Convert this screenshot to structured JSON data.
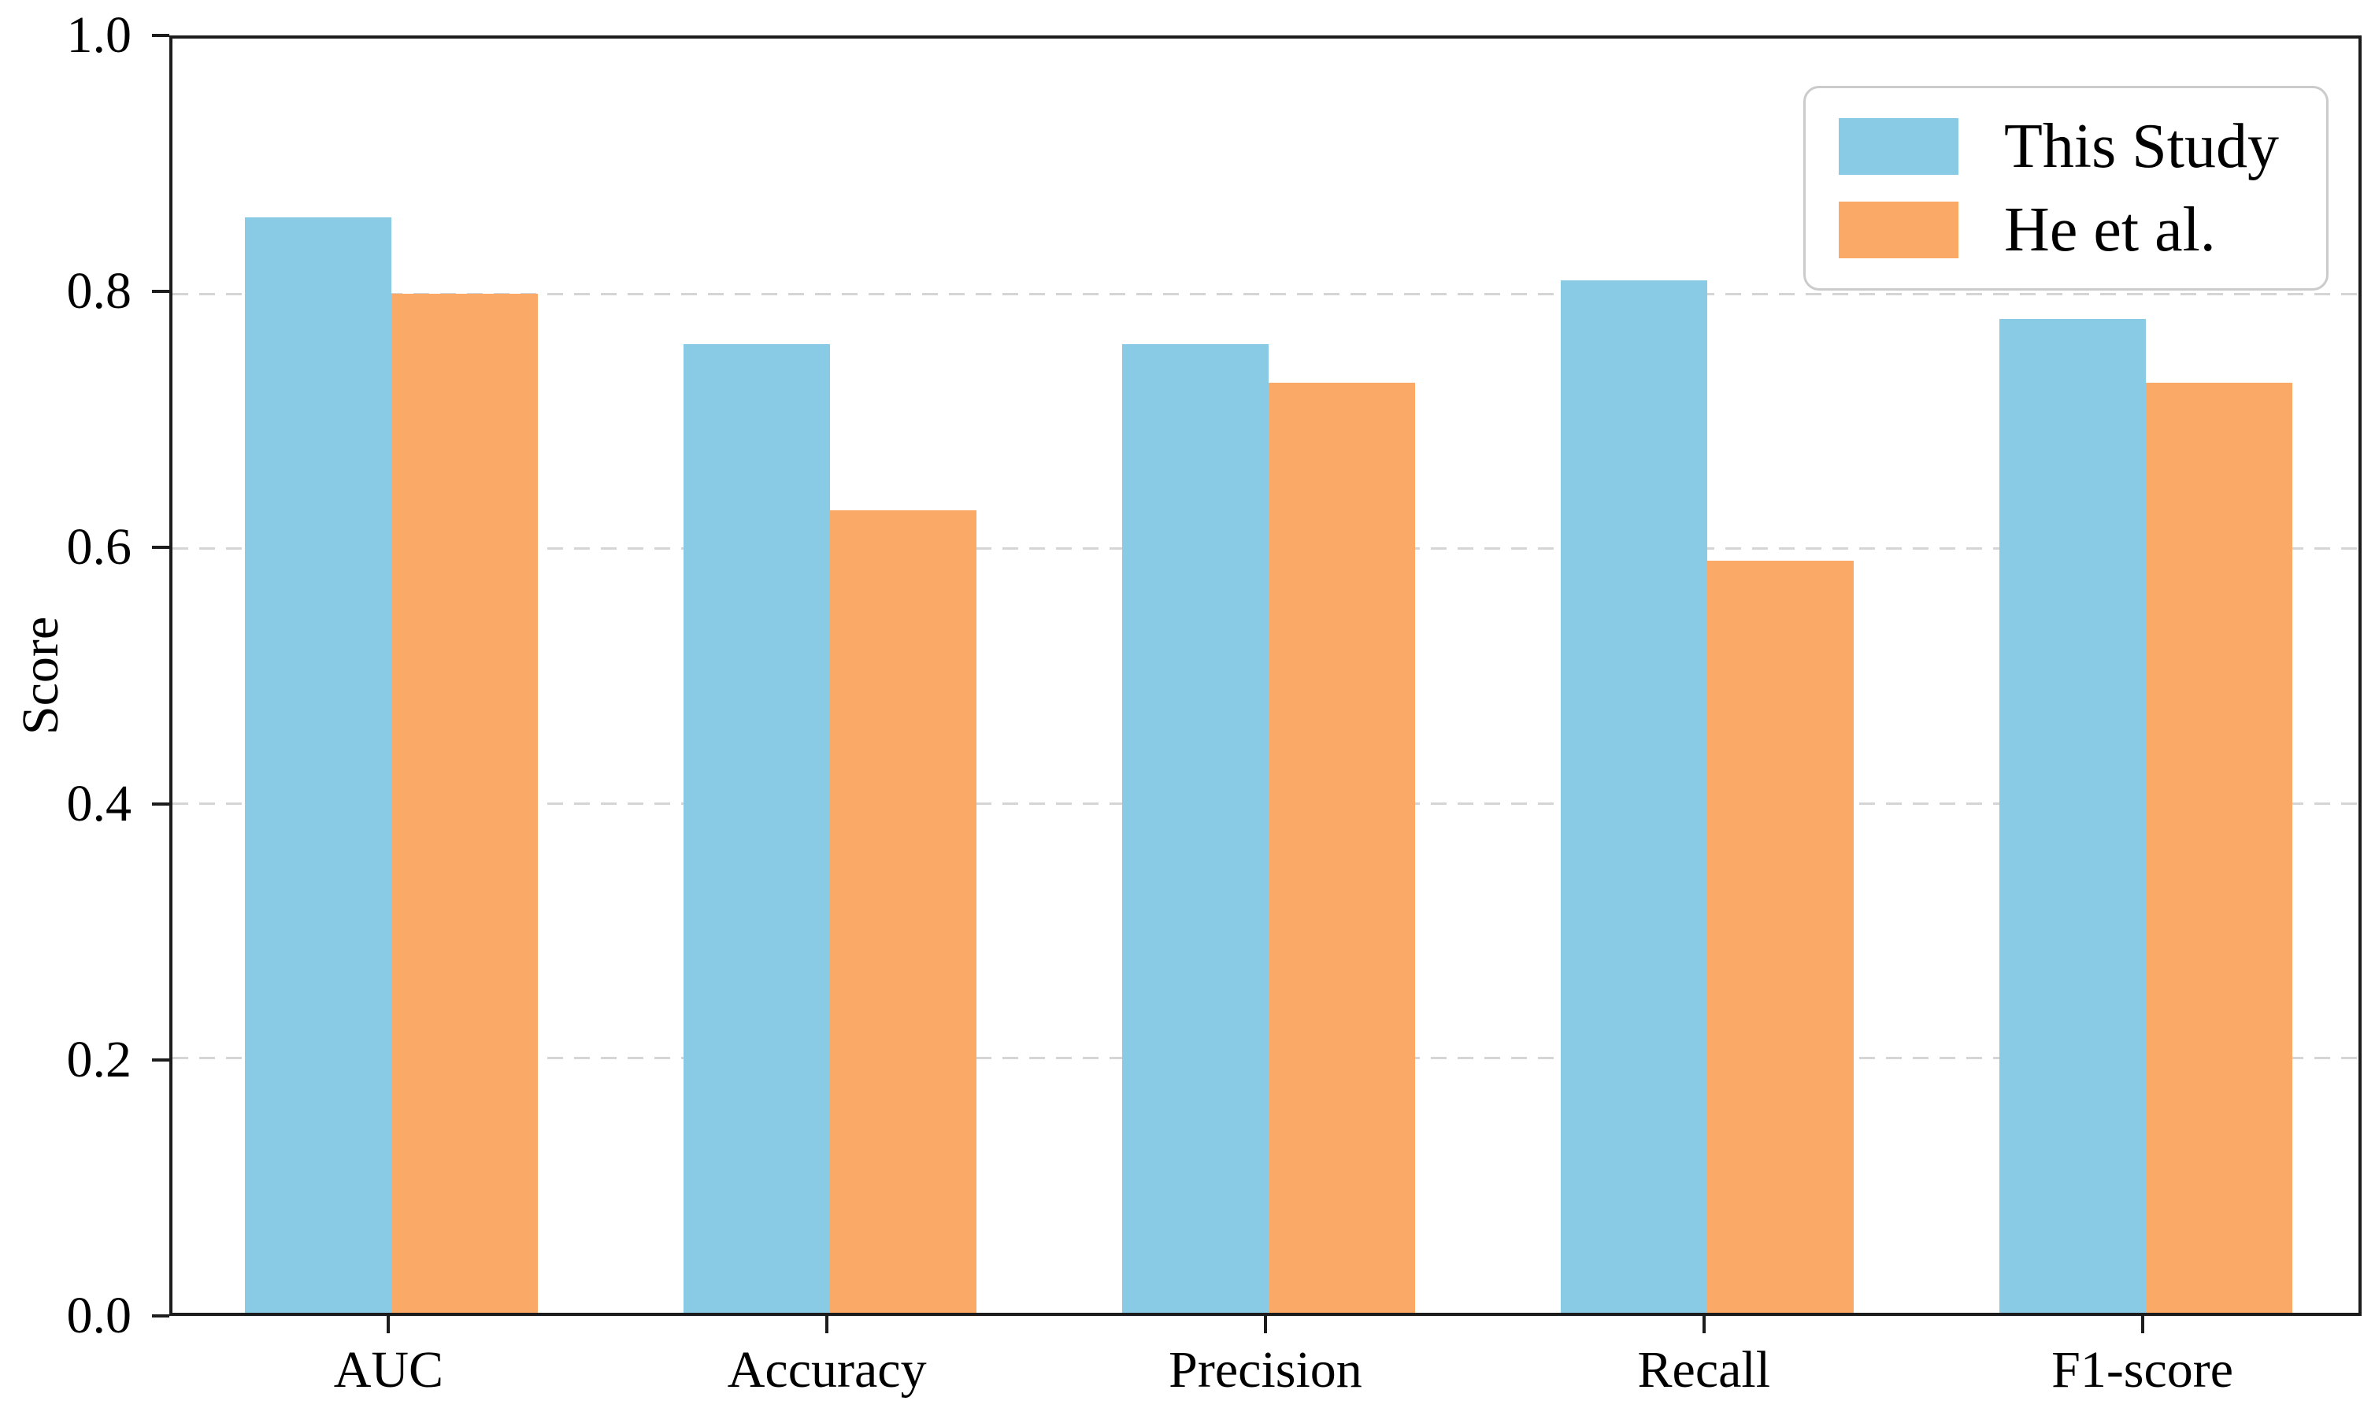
{
  "figure": {
    "background": "#ffffff",
    "axis_color": "#1c1c1c",
    "grid_color": "#d5d5d5",
    "legend_border_color": "#cbcbcb"
  },
  "chart_data": {
    "type": "bar",
    "title": "",
    "categories": [
      "AUC",
      "Accuracy",
      "Precision",
      "Recall",
      "F1-score"
    ],
    "series": [
      {
        "name": "This Study",
        "color": "#89CBE4",
        "values": [
          0.86,
          0.76,
          0.76,
          0.81,
          0.78
        ]
      },
      {
        "name": "He et al.",
        "color": "#FBA966",
        "values": [
          0.8,
          0.63,
          0.73,
          0.59,
          0.73
        ]
      }
    ],
    "xlabel": "",
    "ylabel": "Score",
    "ylim": [
      0.0,
      1.0
    ],
    "y_ticks": [
      0.0,
      0.2,
      0.4,
      0.6,
      0.8,
      1.0
    ],
    "y_tick_labels": [
      "0.0",
      "0.2",
      "0.4",
      "0.6",
      "0.8",
      "1.0"
    ],
    "grid": {
      "axis": "y",
      "style": "dashed",
      "at": [
        0.2,
        0.4,
        0.6,
        0.8
      ]
    },
    "legend": {
      "position": "upper right",
      "entries": [
        "This Study",
        "He et al."
      ]
    }
  }
}
